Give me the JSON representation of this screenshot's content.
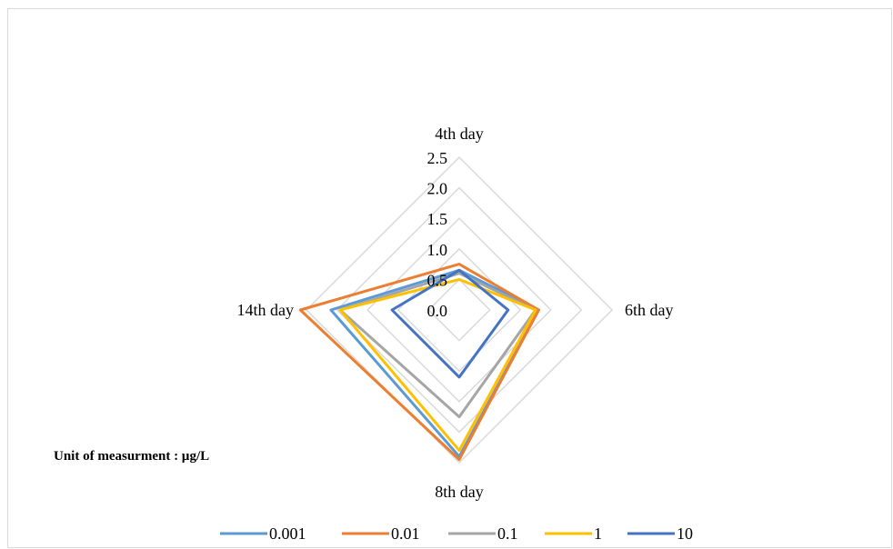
{
  "chart_data": {
    "type": "radar",
    "axes": [
      "4th day",
      "6th day",
      "8th day",
      "14th day"
    ],
    "rlim": [
      0,
      2.5
    ],
    "ticks": [
      "0.0",
      "0.5",
      "1.0",
      "1.5",
      "2.0",
      "2.5"
    ],
    "tick_values": [
      0,
      0.5,
      1.0,
      1.5,
      2.0,
      2.5
    ],
    "grid": true,
    "legend_position": "bottom",
    "series": [
      {
        "name": "0.001",
        "values": [
          0.65,
          1.3,
          2.4,
          2.1
        ],
        "color": "#5b9bd5"
      },
      {
        "name": "0.01",
        "values": [
          0.75,
          1.3,
          2.45,
          2.6
        ],
        "color": "#ed7d31"
      },
      {
        "name": "0.1",
        "values": [
          0.6,
          1.25,
          1.75,
          1.95
        ],
        "color": "#a5a5a5"
      },
      {
        "name": "1",
        "values": [
          0.5,
          1.25,
          2.3,
          1.95
        ],
        "color": "#ffc000"
      },
      {
        "name": "10",
        "values": [
          0.65,
          0.8,
          1.1,
          1.1
        ],
        "color": "#4472c4"
      }
    ]
  },
  "annotation": "Unit of measurment : µg/L"
}
